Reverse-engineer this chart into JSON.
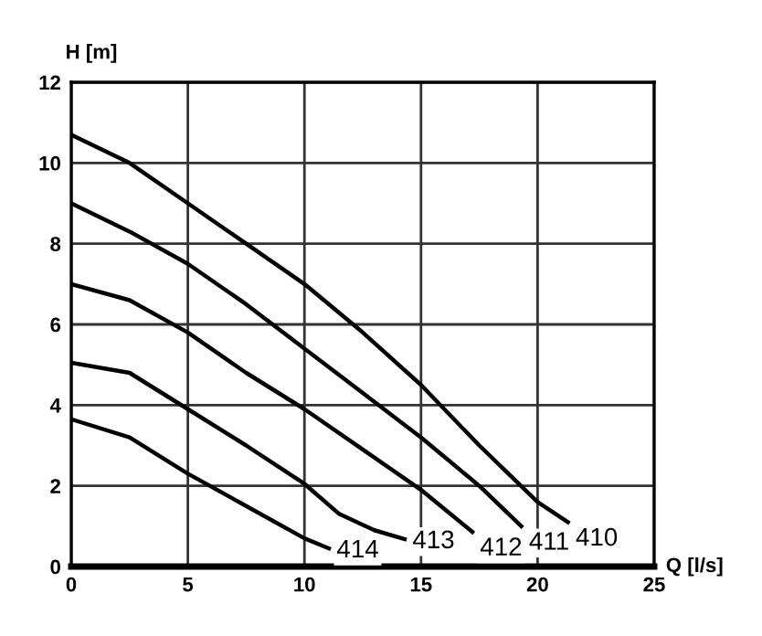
{
  "chart_data": {
    "type": "line",
    "xlabel": "Q [l/s]",
    "ylabel": "H [m]",
    "xlim": [
      0,
      25
    ],
    "ylim": [
      0,
      12
    ],
    "xticks": [
      0,
      5,
      10,
      15,
      20,
      25
    ],
    "yticks": [
      0,
      2,
      4,
      6,
      8,
      10,
      12
    ],
    "grid": true,
    "legend": false,
    "marker": "none",
    "line_style": "solid",
    "series": [
      {
        "name": "410",
        "color": "#000000",
        "x": [
          0,
          2.5,
          5,
          7.5,
          10,
          12.5,
          15,
          17.5,
          20,
          21.3
        ],
        "values": [
          10.7,
          10.0,
          9.0,
          8.0,
          7.0,
          5.8,
          4.5,
          3.0,
          1.6,
          1.1
        ]
      },
      {
        "name": "411",
        "color": "#000000",
        "x": [
          0,
          2.5,
          5,
          7.5,
          10,
          12.5,
          15,
          17.5,
          19.3
        ],
        "values": [
          9.0,
          8.3,
          7.5,
          6.5,
          5.4,
          4.3,
          3.2,
          2.0,
          1.0
        ]
      },
      {
        "name": "412",
        "color": "#000000",
        "x": [
          0,
          2.5,
          5,
          7.5,
          10,
          12.5,
          15,
          17.2
        ],
        "values": [
          7.0,
          6.6,
          5.8,
          4.8,
          3.9,
          2.9,
          1.9,
          0.86
        ]
      },
      {
        "name": "413",
        "color": "#000000",
        "x": [
          0,
          2.5,
          5,
          7.5,
          10,
          11.5,
          13,
          14.3
        ],
        "values": [
          5.05,
          4.8,
          3.9,
          3.0,
          2.05,
          1.3,
          0.9,
          0.68
        ]
      },
      {
        "name": "414",
        "color": "#000000",
        "x": [
          0,
          2.5,
          5,
          7.5,
          10,
          11.05
        ],
        "values": [
          3.65,
          3.2,
          2.3,
          1.5,
          0.7,
          0.45
        ]
      }
    ]
  }
}
